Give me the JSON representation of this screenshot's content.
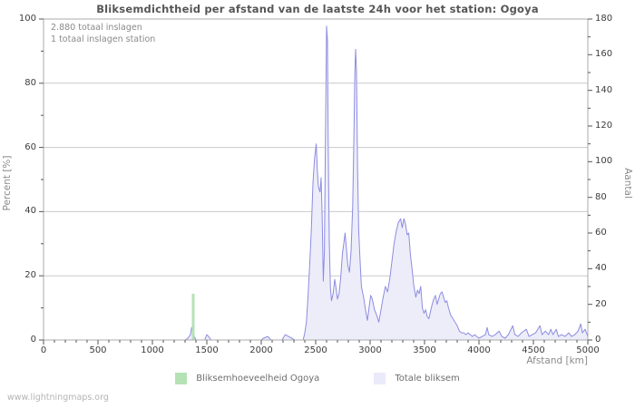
{
  "title": "Bliksemdichtheid per afstand van de laatste 24h voor het station: Ogoya",
  "annotation": {
    "line1": "2.880 totaal inslagen",
    "line2": "1 totaal inslagen station"
  },
  "footer_link": "www.lightningmaps.org",
  "colors": {
    "line": "#8c8ce0",
    "area_fill": "#ededfa",
    "station_green": "#b5e2b5",
    "grid": "#c9c9c9",
    "border": "#ababab",
    "tick": "#555555"
  },
  "legend": [
    {
      "label": "Bliksemhoeveelheid Ogoya",
      "color": "#b5e2b5"
    },
    {
      "label": "Totale bliksem",
      "color": "#eaeafa"
    }
  ],
  "chart_data": {
    "type": "area",
    "title": "Bliksemdichtheid per afstand van de laatste 24h voor het station: Ogoya",
    "xlabel": "Afstand   [km]",
    "ylabel_left": "Percent   [%]",
    "ylabel_right": "Aantal",
    "x_min": 0,
    "x_max": 5000,
    "x_major": 500,
    "x_minor": 100,
    "left_min": 0,
    "left_max": 100,
    "left_major": 20,
    "left_minor": 10,
    "right_min": 0,
    "right_max": 180,
    "right_major": 20,
    "right_minor": 10,
    "x_tick_labels": [
      "0",
      "500",
      "1000",
      "1500",
      "2000",
      "2500",
      "3000",
      "3500",
      "4000",
      "4500",
      "5000"
    ],
    "left_tick_labels": [
      "0",
      "20",
      "40",
      "60",
      "80",
      "100"
    ],
    "right_tick_labels": [
      "0",
      "20",
      "40",
      "60",
      "80",
      "100",
      "120",
      "140",
      "160",
      "180"
    ],
    "grid": "horizontal-only",
    "legend_position": "bottom-center",
    "series": [
      {
        "name": "Totale bliksem",
        "axis": "right",
        "style": "area",
        "points": [
          [
            0,
            0
          ],
          [
            1300,
            0
          ],
          [
            1325,
            1
          ],
          [
            1350,
            3
          ],
          [
            1360,
            7
          ],
          [
            1370,
            5
          ],
          [
            1385,
            2
          ],
          [
            1400,
            0
          ],
          [
            1480,
            0
          ],
          [
            1500,
            3
          ],
          [
            1515,
            2
          ],
          [
            1540,
            0
          ],
          [
            2000,
            0
          ],
          [
            2020,
            1
          ],
          [
            2060,
            2
          ],
          [
            2090,
            0
          ],
          [
            2190,
            0
          ],
          [
            2220,
            3
          ],
          [
            2250,
            2
          ],
          [
            2280,
            1
          ],
          [
            2310,
            0
          ],
          [
            2385,
            0
          ],
          [
            2400,
            4
          ],
          [
            2415,
            10
          ],
          [
            2430,
            25
          ],
          [
            2445,
            42
          ],
          [
            2460,
            62
          ],
          [
            2475,
            88
          ],
          [
            2490,
            102
          ],
          [
            2505,
            110
          ],
          [
            2515,
            95
          ],
          [
            2525,
            86
          ],
          [
            2540,
            83
          ],
          [
            2550,
            91
          ],
          [
            2560,
            68
          ],
          [
            2570,
            33
          ],
          [
            2580,
            50
          ],
          [
            2590,
            115
          ],
          [
            2600,
            176
          ],
          [
            2608,
            168
          ],
          [
            2615,
            110
          ],
          [
            2625,
            55
          ],
          [
            2635,
            30
          ],
          [
            2645,
            22
          ],
          [
            2660,
            26
          ],
          [
            2675,
            34
          ],
          [
            2685,
            30
          ],
          [
            2700,
            23
          ],
          [
            2715,
            26
          ],
          [
            2730,
            35
          ],
          [
            2745,
            48
          ],
          [
            2760,
            55
          ],
          [
            2770,
            60
          ],
          [
            2780,
            53
          ],
          [
            2795,
            42
          ],
          [
            2810,
            38
          ],
          [
            2825,
            50
          ],
          [
            2840,
            75
          ],
          [
            2850,
            110
          ],
          [
            2860,
            150
          ],
          [
            2867,
            163
          ],
          [
            2875,
            150
          ],
          [
            2885,
            95
          ],
          [
            2895,
            62
          ],
          [
            2905,
            48
          ],
          [
            2920,
            30
          ],
          [
            2940,
            24
          ],
          [
            2960,
            16
          ],
          [
            2975,
            11
          ],
          [
            2990,
            18
          ],
          [
            3005,
            25
          ],
          [
            3020,
            23
          ],
          [
            3040,
            17
          ],
          [
            3060,
            14
          ],
          [
            3080,
            10
          ],
          [
            3100,
            17
          ],
          [
            3120,
            24
          ],
          [
            3140,
            30
          ],
          [
            3160,
            27
          ],
          [
            3180,
            34
          ],
          [
            3200,
            44
          ],
          [
            3220,
            54
          ],
          [
            3240,
            61
          ],
          [
            3260,
            66
          ],
          [
            3280,
            68
          ],
          [
            3295,
            63
          ],
          [
            3310,
            68
          ],
          [
            3325,
            65
          ],
          [
            3340,
            59
          ],
          [
            3355,
            60
          ],
          [
            3370,
            48
          ],
          [
            3385,
            40
          ],
          [
            3400,
            31
          ],
          [
            3420,
            24
          ],
          [
            3435,
            28
          ],
          [
            3450,
            26
          ],
          [
            3465,
            30
          ],
          [
            3480,
            18
          ],
          [
            3495,
            15
          ],
          [
            3510,
            17
          ],
          [
            3525,
            13
          ],
          [
            3540,
            12
          ],
          [
            3555,
            16
          ],
          [
            3570,
            20
          ],
          [
            3585,
            23
          ],
          [
            3600,
            25
          ],
          [
            3615,
            20
          ],
          [
            3630,
            23
          ],
          [
            3645,
            26
          ],
          [
            3660,
            27
          ],
          [
            3675,
            24
          ],
          [
            3690,
            21
          ],
          [
            3705,
            22
          ],
          [
            3720,
            18
          ],
          [
            3740,
            14
          ],
          [
            3760,
            12
          ],
          [
            3780,
            10
          ],
          [
            3800,
            8
          ],
          [
            3820,
            5
          ],
          [
            3840,
            4
          ],
          [
            3860,
            4
          ],
          [
            3880,
            3
          ],
          [
            3900,
            4
          ],
          [
            3920,
            3
          ],
          [
            3940,
            2
          ],
          [
            3960,
            3
          ],
          [
            3980,
            2
          ],
          [
            4000,
            1
          ],
          [
            4030,
            2
          ],
          [
            4060,
            3
          ],
          [
            4075,
            7
          ],
          [
            4090,
            3
          ],
          [
            4120,
            2
          ],
          [
            4150,
            3
          ],
          [
            4185,
            5
          ],
          [
            4210,
            2
          ],
          [
            4240,
            1
          ],
          [
            4270,
            3
          ],
          [
            4310,
            8
          ],
          [
            4330,
            3
          ],
          [
            4360,
            2
          ],
          [
            4390,
            4
          ],
          [
            4435,
            6
          ],
          [
            4460,
            2
          ],
          [
            4490,
            3
          ],
          [
            4520,
            4
          ],
          [
            4560,
            8
          ],
          [
            4580,
            3
          ],
          [
            4610,
            5
          ],
          [
            4640,
            3
          ],
          [
            4660,
            6
          ],
          [
            4680,
            3
          ],
          [
            4710,
            6
          ],
          [
            4730,
            2
          ],
          [
            4760,
            3
          ],
          [
            4790,
            2
          ],
          [
            4825,
            4
          ],
          [
            4850,
            2
          ],
          [
            4880,
            3
          ],
          [
            4910,
            5
          ],
          [
            4935,
            9
          ],
          [
            4950,
            4
          ],
          [
            4975,
            6
          ],
          [
            5000,
            2
          ]
        ]
      },
      {
        "name": "Bliksemhoeveelheid Ogoya",
        "axis": "left",
        "style": "bar",
        "points": [
          [
            1375,
            14.4
          ]
        ]
      }
    ]
  }
}
